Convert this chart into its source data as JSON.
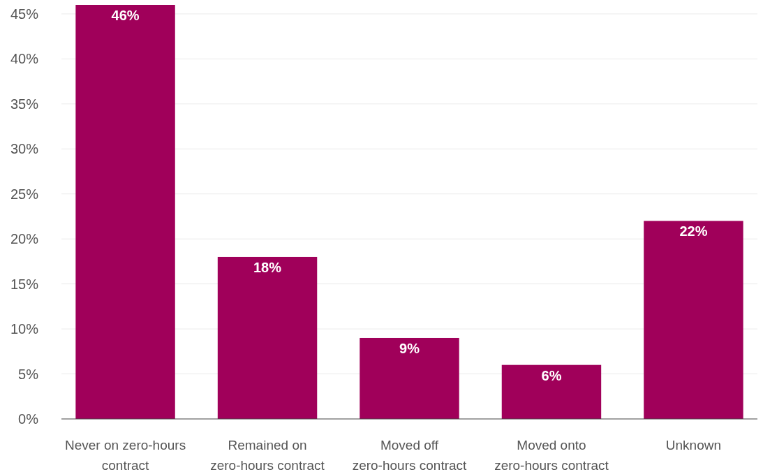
{
  "chart_data": {
    "type": "bar",
    "categories": [
      "Never on zero-hours contract",
      "Remained on zero-hours contract",
      "Moved off zero-hours contract",
      "Moved onto zero-hours contract",
      "Unknown"
    ],
    "values": [
      46,
      18,
      9,
      6,
      22
    ],
    "color": "#a0005a",
    "ylim": [
      0,
      46
    ],
    "yticks": [
      {
        "value": 0,
        "label": "0%"
      },
      {
        "value": 5,
        "label": "5%"
      },
      {
        "value": 10,
        "label": "10%"
      },
      {
        "value": 15,
        "label": "15%"
      },
      {
        "value": 20,
        "label": "20%"
      },
      {
        "value": 25,
        "label": "25%"
      },
      {
        "value": 30,
        "label": "30%"
      },
      {
        "value": 35,
        "label": "35%"
      },
      {
        "value": 40,
        "label": "40%"
      },
      {
        "value": 45,
        "label": "45%"
      }
    ],
    "value_labels": [
      "46%",
      "18%",
      "9%",
      "6%",
      "22%"
    ],
    "grid": "y"
  }
}
